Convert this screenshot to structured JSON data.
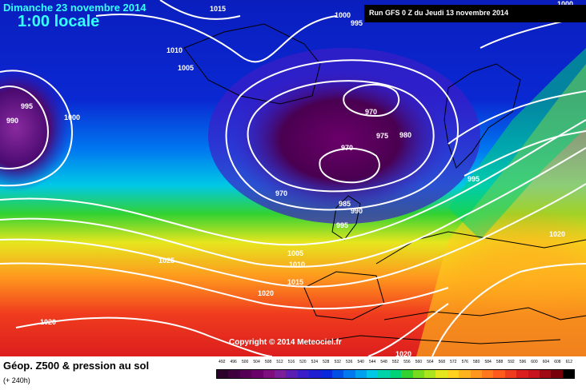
{
  "header": {
    "date": "Dimanche 23 novembre 2014",
    "time": "1:00 locale",
    "run": "Run GFS 0 Z du Jeudi 13 novembre 2014"
  },
  "copyright": "Copyright © 2014 Meteociel.fr",
  "footer": {
    "title": "Géop. Z500 & pression au sol",
    "subtitle": "(+ 240h)"
  },
  "legend": {
    "values": [
      "492",
      "496",
      "500",
      "504",
      "508",
      "512",
      "516",
      "520",
      "524",
      "528",
      "532",
      "536",
      "540",
      "544",
      "548",
      "552",
      "556",
      "560",
      "564",
      "568",
      "572",
      "576",
      "580",
      "584",
      "588",
      "592",
      "596",
      "600",
      "604",
      "608",
      "612"
    ],
    "colors": [
      "#2b002b",
      "#400040",
      "#550055",
      "#6a006a",
      "#7f0f7f",
      "#7a1e9a",
      "#5a1eb4",
      "#3c1ec8",
      "#1e1ed2",
      "#0a28dc",
      "#0050e6",
      "#0078f0",
      "#00a0f0",
      "#00c8e6",
      "#00d2aa",
      "#00d278",
      "#32d232",
      "#78dc1e",
      "#aae61e",
      "#e6e61e",
      "#ffd21e",
      "#ffb41e",
      "#ff961e",
      "#ff781e",
      "#ff5a1e",
      "#f03c1e",
      "#dc1e1e",
      "#c8141e",
      "#a00a14",
      "#78000a",
      "#000000"
    ]
  },
  "isobars": [
    {
      "label": "1015",
      "row": "top"
    },
    {
      "label": "1000",
      "row": "top"
    },
    {
      "label": "995",
      "row": "top"
    },
    {
      "label": "1000",
      "row": "top"
    },
    {
      "label": "1010",
      "row": "north"
    },
    {
      "label": "1005",
      "row": "north"
    },
    {
      "label": "995",
      "row": "west-low"
    },
    {
      "label": "990",
      "row": "west-low"
    },
    {
      "label": "1000",
      "row": "west-low"
    },
    {
      "label": "970",
      "row": "main-low"
    },
    {
      "label": "970",
      "row": "main-low"
    },
    {
      "label": "975",
      "row": "main-low"
    },
    {
      "label": "980",
      "row": "main-low"
    },
    {
      "label": "970",
      "row": "main-low"
    },
    {
      "label": "985",
      "row": "main-low"
    },
    {
      "label": "990",
      "row": "main-low"
    },
    {
      "label": "995",
      "row": "main-low"
    },
    {
      "label": "995",
      "row": "east"
    },
    {
      "label": "1025",
      "row": "south"
    },
    {
      "label": "1005",
      "row": "south"
    },
    {
      "label": "1010",
      "row": "south"
    },
    {
      "label": "1015",
      "row": "south"
    },
    {
      "label": "1020",
      "row": "south"
    },
    {
      "label": "1020",
      "row": "south"
    },
    {
      "label": "1020",
      "row": "south"
    },
    {
      "label": "1020",
      "row": "south"
    }
  ]
}
